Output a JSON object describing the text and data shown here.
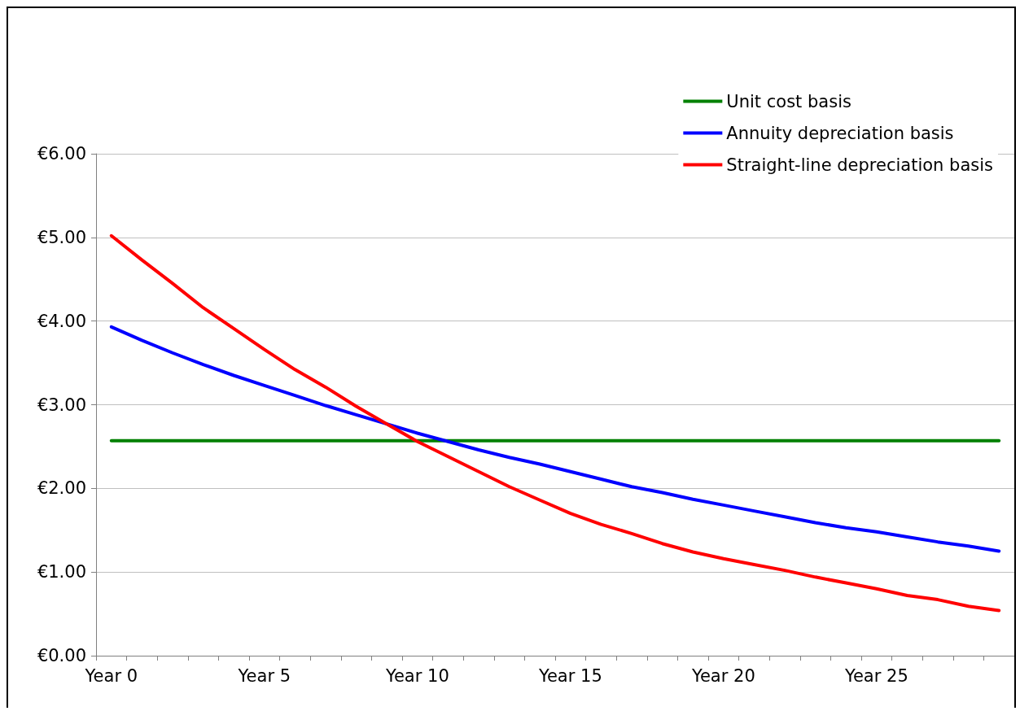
{
  "chart_data": {
    "type": "line",
    "categories": [
      "Year 0",
      null,
      null,
      null,
      null,
      "Year 5",
      null,
      null,
      null,
      null,
      "Year 10",
      null,
      null,
      null,
      null,
      "Year 15",
      null,
      null,
      null,
      null,
      "Year 20",
      null,
      null,
      null,
      null,
      "Year 25",
      null,
      null,
      null,
      null
    ],
    "series": [
      {
        "name": "Unit cost basis",
        "color": "#008000",
        "values": [
          2.57,
          2.57,
          2.57,
          2.57,
          2.57,
          2.57,
          2.57,
          2.57,
          2.57,
          2.57,
          2.57,
          2.57,
          2.57,
          2.57,
          2.57,
          2.57,
          2.57,
          2.57,
          2.57,
          2.57,
          2.57,
          2.57,
          2.57,
          2.57,
          2.57,
          2.57,
          2.57,
          2.57,
          2.57,
          2.57
        ]
      },
      {
        "name": "Annuity depreciation basis",
        "color": "#0000ff",
        "values": [
          3.93,
          3.77,
          3.62,
          3.48,
          3.35,
          3.23,
          3.11,
          2.99,
          2.88,
          2.77,
          2.66,
          2.56,
          2.46,
          2.37,
          2.29,
          2.2,
          2.11,
          2.02,
          1.95,
          1.87,
          1.8,
          1.73,
          1.66,
          1.59,
          1.53,
          1.48,
          1.42,
          1.36,
          1.31,
          1.25
        ]
      },
      {
        "name": "Straight-line depreciation basis",
        "color": "#ff0000",
        "values": [
          5.02,
          4.73,
          4.45,
          4.16,
          3.91,
          3.66,
          3.42,
          3.21,
          2.98,
          2.77,
          2.56,
          2.38,
          2.2,
          2.02,
          1.86,
          1.7,
          1.57,
          1.46,
          1.34,
          1.24,
          1.16,
          1.09,
          1.02,
          0.94,
          0.87,
          0.8,
          0.72,
          0.67,
          0.59,
          0.54
        ]
      }
    ],
    "ylim": [
      0,
      6
    ],
    "yticks": [
      {
        "value": 0,
        "label": "€0.00"
      },
      {
        "value": 1,
        "label": "€1.00"
      },
      {
        "value": 2,
        "label": "€2.00"
      },
      {
        "value": 3,
        "label": "€3.00"
      },
      {
        "value": 4,
        "label": "€4.00"
      },
      {
        "value": 5,
        "label": "€5.00"
      },
      {
        "value": 6,
        "label": "€6.00"
      }
    ],
    "grid": "y",
    "legend": "top right",
    "marker": "none",
    "line_style": "solid"
  }
}
